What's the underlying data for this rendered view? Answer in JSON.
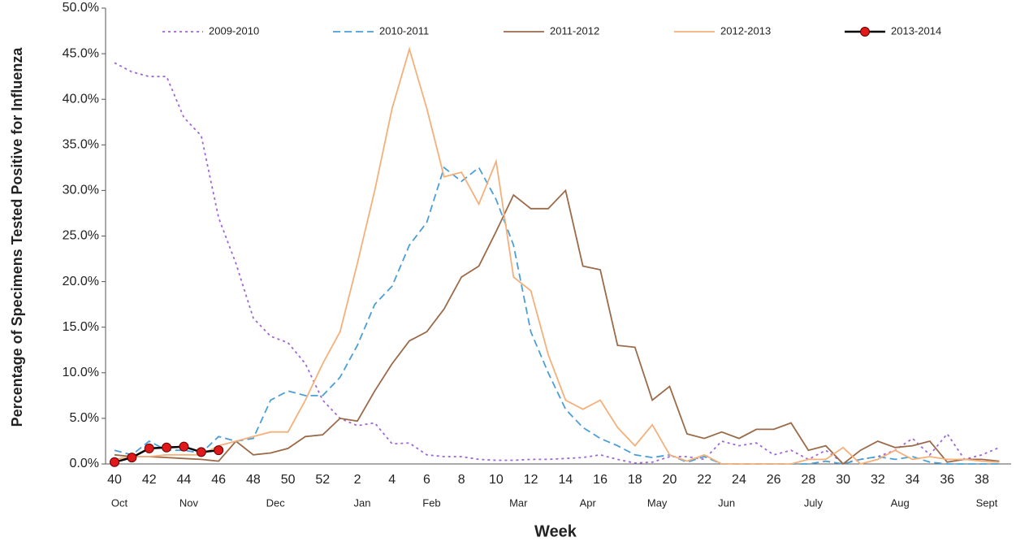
{
  "chart_data": {
    "type": "line",
    "x_label": "Week",
    "y_label": "Percentage of Specimens Tested Positive for Influenza",
    "categories": [
      "40",
      null,
      "42",
      null,
      "44",
      null,
      "46",
      null,
      "48",
      null,
      "50",
      null,
      "52",
      null,
      "2",
      null,
      "4",
      null,
      "6",
      null,
      "8",
      null,
      "10",
      null,
      "12",
      null,
      "14",
      null,
      "16",
      null,
      "18",
      null,
      "20",
      null,
      "22",
      null,
      "24",
      null,
      "26",
      null,
      "28",
      null,
      "30",
      null,
      "32",
      null,
      "34",
      null,
      "36",
      null,
      "38",
      null
    ],
    "month_categories": [
      "Oct",
      null,
      null,
      null,
      "Nov",
      null,
      null,
      null,
      null,
      "Dec",
      null,
      null,
      null,
      null,
      "Jan",
      null,
      null,
      null,
      "Feb",
      null,
      null,
      null,
      null,
      "Mar",
      null,
      null,
      null,
      "Apr",
      null,
      null,
      null,
      "May",
      null,
      null,
      null,
      "Jun",
      null,
      null,
      null,
      null,
      "July",
      null,
      null,
      null,
      null,
      "Aug",
      null,
      null,
      null,
      null,
      "Sept",
      null
    ],
    "ylim": [
      0,
      50
    ],
    "yticks": [
      {
        "value": 0,
        "label": "0.0%"
      },
      {
        "value": 5,
        "label": "5.0%"
      },
      {
        "value": 10,
        "label": "10.0%"
      },
      {
        "value": 15,
        "label": "15.0%"
      },
      {
        "value": 20,
        "label": "20.0%"
      },
      {
        "value": 25,
        "label": "25.0%"
      },
      {
        "value": 30,
        "label": "30.0%"
      },
      {
        "value": 35,
        "label": "35.0%"
      },
      {
        "value": 40,
        "label": "40.0%"
      },
      {
        "value": 45,
        "label": "45.0%"
      },
      {
        "value": 50,
        "label": "50.0%"
      }
    ],
    "grid": false,
    "legend": "top",
    "series": [
      {
        "name": "2009-2010",
        "color": "#a066d3",
        "dash": "dotted",
        "values": [
          44,
          43,
          42.5,
          42.5,
          38,
          36,
          27,
          22,
          16,
          14,
          13.3,
          11,
          7,
          5,
          4.2,
          4.5,
          2.2,
          2.3,
          1,
          0.8,
          0.8,
          0.5,
          0.4,
          0.4,
          0.5,
          0.5,
          0.6,
          0.7,
          1,
          0.5,
          0.1,
          0.2,
          0.8,
          0.8,
          0.5,
          2.5,
          2,
          2.3,
          1,
          1.5,
          0.5,
          1.5,
          0.1,
          0.5,
          0.8,
          1.5,
          2.8,
          1,
          3.3,
          0.5,
          1,
          1.8
        ]
      },
      {
        "name": "2010-2011",
        "color": "#4b9fd5",
        "dash": "dashed",
        "values": [
          1.5,
          1,
          2.5,
          1.5,
          1.5,
          1.2,
          3,
          2.5,
          2.8,
          7,
          8,
          7.5,
          7.5,
          9.5,
          13,
          17.5,
          19.5,
          24,
          26.5,
          32.5,
          31,
          32.5,
          29,
          24,
          14.5,
          10,
          6,
          4,
          2.8,
          2,
          1,
          0.7,
          1,
          0.2,
          0.8,
          0,
          0,
          0,
          0,
          0,
          0,
          0.3,
          0,
          0.5,
          0.8,
          0.5,
          0.8,
          0.2,
          0,
          0,
          0,
          0
        ]
      },
      {
        "name": "2011-2012",
        "color": "#9b6a48",
        "dash": "solid",
        "values": [
          1,
          0.8,
          0.8,
          0.7,
          0.6,
          0.5,
          0.3,
          2.5,
          1,
          1.2,
          1.7,
          3,
          3.2,
          5,
          4.7,
          8,
          11,
          13.5,
          14.5,
          17,
          20.5,
          21.7,
          25.5,
          29.5,
          28,
          28,
          30,
          21.7,
          21.3,
          13,
          12.8,
          7,
          8.5,
          3.3,
          2.8,
          3.5,
          2.8,
          3.8,
          3.8,
          4.5,
          1.5,
          2,
          0,
          1.5,
          2.5,
          1.8,
          2,
          2.5,
          0.2,
          0.5,
          0.5,
          0.3
        ]
      },
      {
        "name": "2012-2013",
        "color": "#f5b07a",
        "dash": "solid",
        "values": [
          0.5,
          0.8,
          0.8,
          1,
          1,
          1,
          2,
          2.5,
          3,
          3.5,
          3.5,
          7,
          11,
          14.5,
          22,
          30,
          39,
          45.5,
          39,
          31.5,
          32,
          28.5,
          33.2,
          20.5,
          19,
          12,
          7,
          6,
          7,
          4,
          2,
          4.3,
          1,
          0.3,
          1,
          0,
          0,
          0,
          0,
          0,
          0.5,
          0.5,
          1.8,
          0,
          0.5,
          1.5,
          0.5,
          0.8,
          0.5,
          0.5,
          0.3,
          0.2
        ]
      },
      {
        "name": "2013-2014",
        "color": "#000000",
        "marker_color": "#e0191b",
        "dash": "solid",
        "markers": true,
        "values": [
          0.2,
          0.7,
          1.7,
          1.8,
          1.9,
          1.3,
          1.5,
          null,
          null,
          null,
          null,
          null,
          null,
          null,
          null,
          null,
          null,
          null,
          null,
          null,
          null,
          null,
          null,
          null,
          null,
          null,
          null,
          null,
          null,
          null,
          null,
          null,
          null,
          null,
          null,
          null,
          null,
          null,
          null,
          null,
          null,
          null,
          null,
          null,
          null,
          null,
          null,
          null,
          null,
          null,
          null,
          null
        ]
      }
    ]
  }
}
